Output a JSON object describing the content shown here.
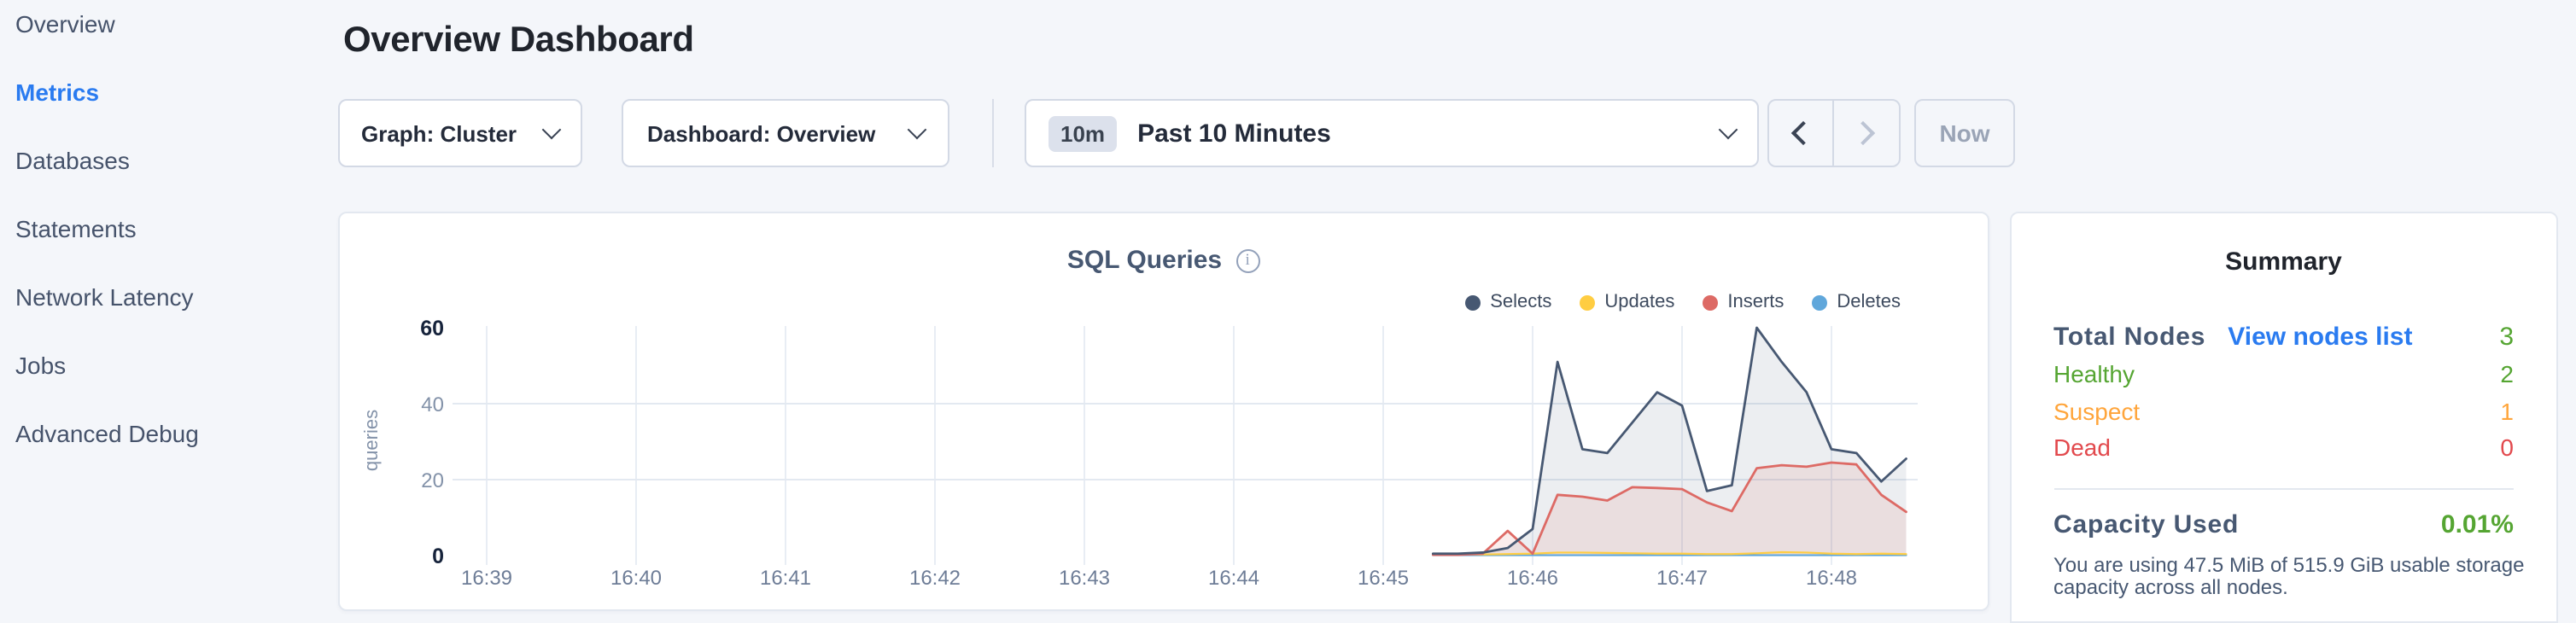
{
  "sidebar": {
    "active_color": "#2a7bf0",
    "items": [
      {
        "label": "Overview",
        "active": false
      },
      {
        "label": "Metrics",
        "active": true
      },
      {
        "label": "Databases",
        "active": false
      },
      {
        "label": "Statements",
        "active": false
      },
      {
        "label": "Network Latency",
        "active": false
      },
      {
        "label": "Jobs",
        "active": false
      },
      {
        "label": "Advanced Debug",
        "active": false
      }
    ]
  },
  "header": {
    "title": "Overview Dashboard"
  },
  "controls": {
    "graph_dropdown": "Graph: Cluster",
    "dashboard_dropdown": "Dashboard: Overview",
    "time_badge": "10m",
    "time_label": "Past 10 Minutes",
    "now_label": "Now"
  },
  "chart_data": {
    "type": "line",
    "title": "SQL Queries",
    "ylabel": "queries",
    "ylim": [
      0,
      63
    ],
    "yticks": [
      0,
      20,
      40,
      60
    ],
    "grid_y": [
      20,
      40
    ],
    "x_ticks": [
      "16:39",
      "16:40",
      "16:41",
      "16:42",
      "16:43",
      "16:44",
      "16:45",
      "16:46",
      "16:47",
      "16:48"
    ],
    "legend_position": "top-right",
    "sample_times": [
      "16:45:20",
      "16:45:30",
      "16:45:40",
      "16:45:50",
      "16:46:00",
      "16:46:10",
      "16:46:20",
      "16:46:30",
      "16:46:40",
      "16:46:50",
      "16:47:00",
      "16:47:10",
      "16:47:20",
      "16:47:30",
      "16:47:40",
      "16:47:50",
      "16:48:00",
      "16:48:10",
      "16:48:20",
      "16:48:30"
    ],
    "series": [
      {
        "name": "Selects",
        "color": "#475872",
        "fill": "rgba(71,88,114,0.10)",
        "values": [
          0.5,
          0.5,
          0.8,
          2,
          7,
          51,
          28,
          27,
          35,
          43,
          39.5,
          17,
          18.5,
          60,
          51,
          43,
          28,
          27,
          19.5,
          25.5
        ]
      },
      {
        "name": "Updates",
        "color": "#ffcd42",
        "fill": null,
        "values": [
          0.3,
          0.3,
          0.3,
          0.4,
          0.5,
          0.8,
          0.8,
          0.7,
          0.6,
          0.5,
          0.5,
          0.4,
          0.4,
          0.6,
          0.9,
          0.8,
          0.5,
          0.4,
          0.5,
          0.4
        ]
      },
      {
        "name": "Inserts",
        "color": "#dd6a65",
        "fill": "rgba(221,106,101,0.12)",
        "values": [
          0.2,
          0.2,
          0.5,
          6.5,
          0.5,
          16,
          15.5,
          14.5,
          18,
          17.8,
          17.5,
          14,
          11.7,
          23,
          23.8,
          23.4,
          24.5,
          24,
          16,
          11.5
        ]
      },
      {
        "name": "Deletes",
        "color": "#60a7db",
        "fill": null,
        "values": [
          0.1,
          0.1,
          0.1,
          0.1,
          0.1,
          0.1,
          0.1,
          0.1,
          0.1,
          0.1,
          0.1,
          0.1,
          0.1,
          0.1,
          0.1,
          0.1,
          0.1,
          0.1,
          0.1,
          0.1
        ]
      }
    ]
  },
  "summary": {
    "title": "Summary",
    "total_nodes_label": "Total Nodes",
    "view_nodes_link": "View nodes list",
    "total_nodes_value": "3",
    "link_color": "#2a7bf0",
    "green": "#55a532",
    "statuses": [
      {
        "label": "Healthy",
        "value": "2",
        "color": "#55a532"
      },
      {
        "label": "Suspect",
        "value": "1",
        "color": "#ffa53b"
      },
      {
        "label": "Dead",
        "value": "0",
        "color": "#e2494d"
      }
    ],
    "capacity_label": "Capacity Used",
    "capacity_value": "0.01%",
    "capacity_note_lines": [
      "You are using 47.5 MiB of 515.9 GiB usable storage",
      "capacity across all nodes."
    ]
  }
}
